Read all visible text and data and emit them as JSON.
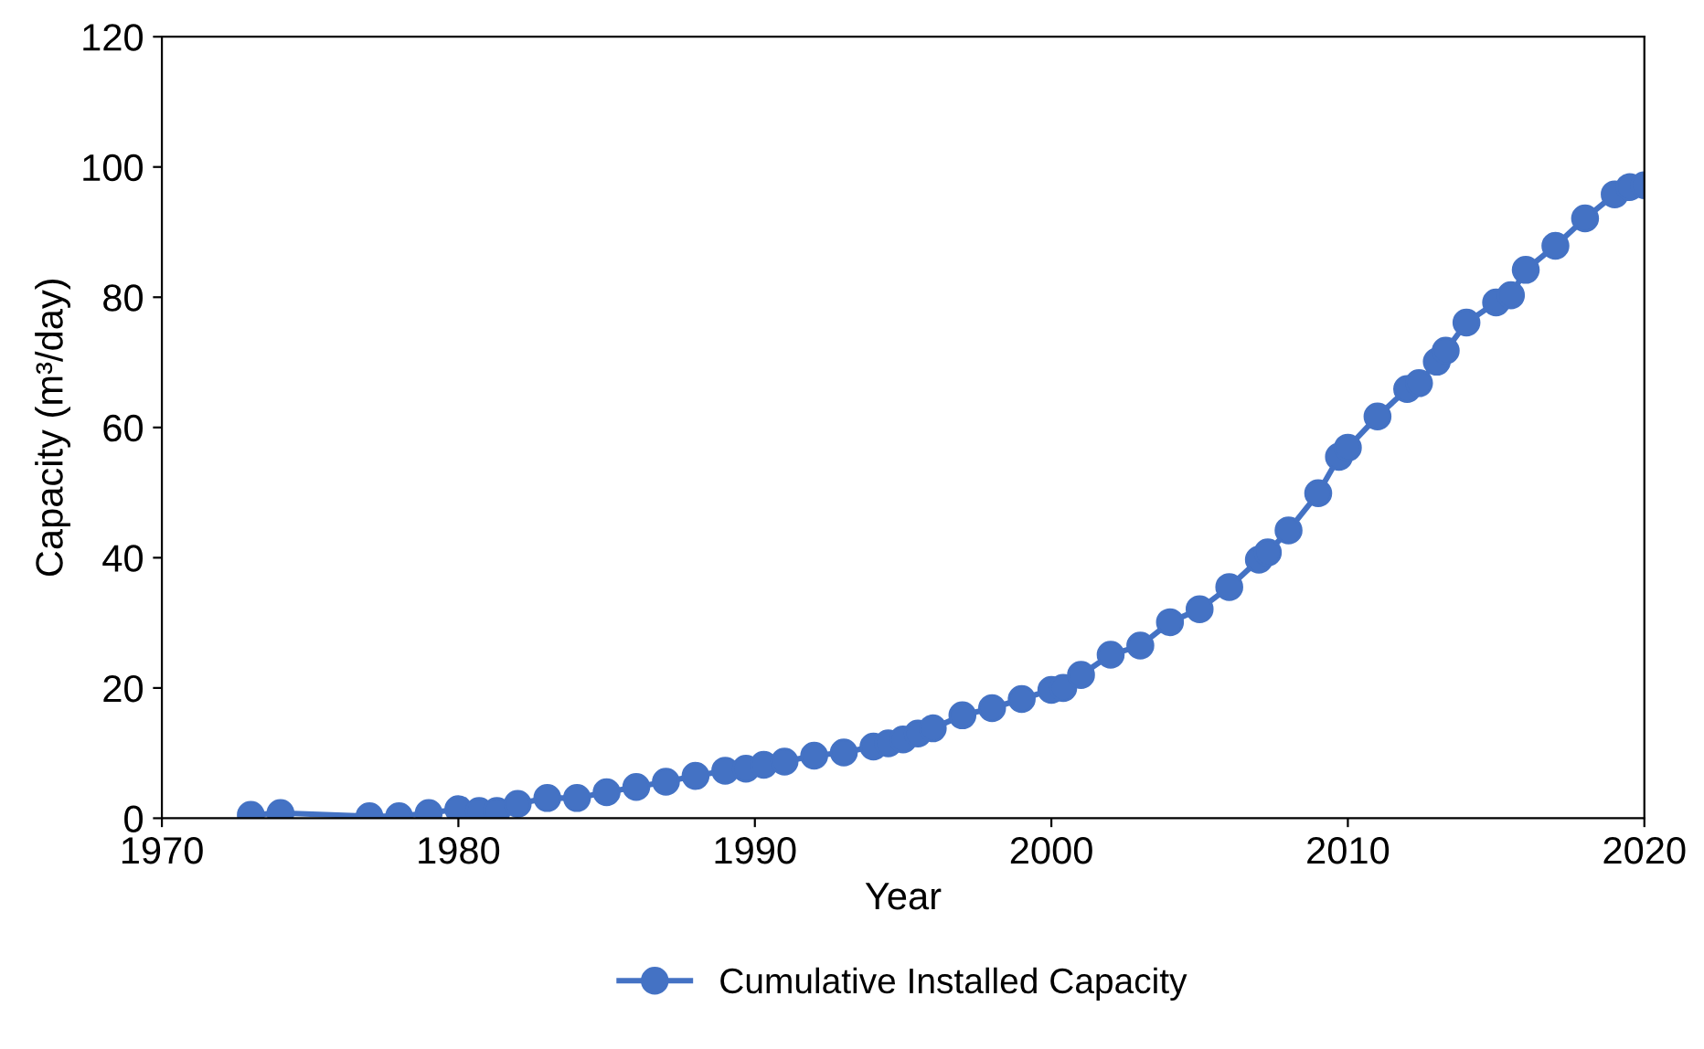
{
  "chart_data": {
    "type": "line",
    "xlabel": "Year",
    "ylabel": "Capacity (m³/day)",
    "x": [
      1973,
      1974,
      1977,
      1978,
      1979,
      1980,
      1980.7,
      1981.3,
      1982,
      1983,
      1984,
      1985,
      1986,
      1987,
      1988,
      1989,
      1989.7,
      1990.3,
      1991,
      1992,
      1993,
      1994,
      1994.5,
      1995,
      1995.5,
      1996,
      1997,
      1998,
      1999,
      2000,
      2000.4,
      2001,
      2002,
      2003,
      2004,
      2005,
      2006,
      2007,
      2007.3,
      2008,
      2009,
      2009.7,
      2010,
      2011,
      2012,
      2012.4,
      2013,
      2013.3,
      2014,
      2015,
      2015.5,
      2016,
      2017,
      2018,
      2019,
      2019.5,
      2020
    ],
    "series": [
      {
        "name": "Cumulative Installed Capacity",
        "color": "#4472c4",
        "values": [
          0.5,
          0.8,
          0.3,
          0.3,
          0.8,
          1.4,
          1.1,
          1.1,
          2.2,
          3.1,
          3.1,
          4,
          4.8,
          5.6,
          6.5,
          7.3,
          7.6,
          8.2,
          8.7,
          9.6,
          10.1,
          11,
          11.5,
          12.1,
          13,
          13.8,
          15.8,
          16.9,
          18.3,
          19.7,
          20,
          22,
          25.1,
          26.5,
          30.1,
          32.1,
          35.5,
          39.7,
          40.8,
          44.2,
          49.9,
          55.5,
          56.9,
          61.7,
          65.9,
          66.8,
          70.1,
          71.8,
          76.1,
          79.2,
          80.3,
          84.2,
          87.9,
          92.1,
          95.8,
          96.9,
          97.2
        ]
      }
    ],
    "xlim": [
      1970,
      2020
    ],
    "xticks": [
      1970,
      1980,
      1990,
      2000,
      2010,
      2020
    ],
    "ylim": [
      0,
      120
    ],
    "yticks": [
      0,
      20,
      40,
      60,
      80,
      100,
      120
    ],
    "grid": false,
    "legend": "bottom",
    "marker": "circle",
    "line_style": "solid"
  }
}
